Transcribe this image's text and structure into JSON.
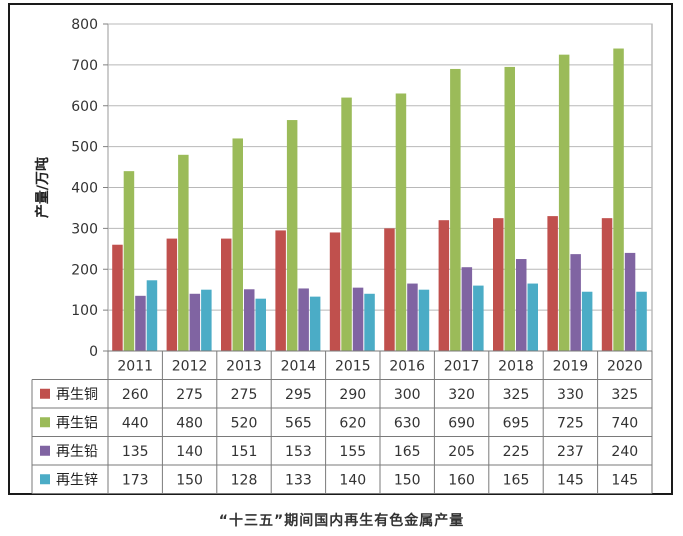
{
  "chart_data": {
    "type": "bar",
    "ylabel": "产量/万吨",
    "ylim": [
      0,
      800
    ],
    "yticks": [
      0,
      100,
      200,
      300,
      400,
      500,
      600,
      700,
      800
    ],
    "grid": true,
    "legend": "table-left",
    "categories": [
      "2011",
      "2012",
      "2013",
      "2014",
      "2015",
      "2016",
      "2017",
      "2018",
      "2019",
      "2020"
    ],
    "series": [
      {
        "name": "再生铜",
        "color": "#c0504d",
        "values": [
          260,
          275,
          275,
          295,
          290,
          300,
          320,
          325,
          330,
          325
        ]
      },
      {
        "name": "再生铝",
        "color": "#9bbb59",
        "values": [
          440,
          480,
          520,
          565,
          620,
          630,
          690,
          695,
          725,
          740
        ]
      },
      {
        "name": "再生铅",
        "color": "#8064a2",
        "values": [
          135,
          140,
          151,
          153,
          155,
          165,
          205,
          225,
          237,
          240
        ]
      },
      {
        "name": "再生锌",
        "color": "#4bacc6",
        "values": [
          173,
          150,
          128,
          133,
          140,
          150,
          160,
          165,
          145,
          145
        ]
      }
    ]
  },
  "caption": "“十三五”期间国内再生有色金属产量"
}
